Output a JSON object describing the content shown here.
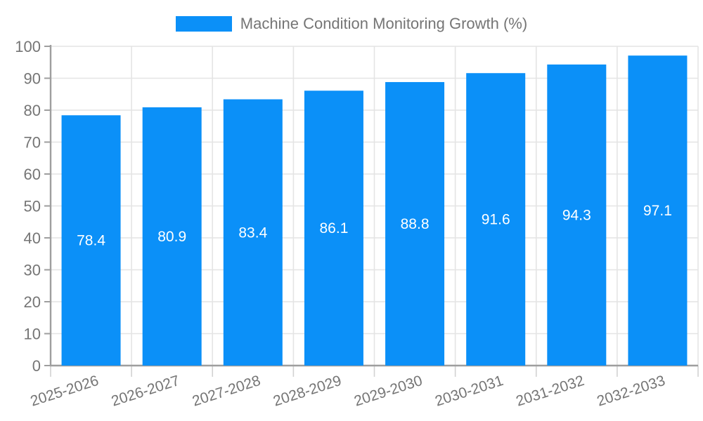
{
  "chart_data": {
    "type": "bar",
    "title": "Machine Condition Monitoring Growth (%)",
    "categories": [
      "2025-2026",
      "2026-2027",
      "2027-2028",
      "2028-2029",
      "2029-2030",
      "2030-2031",
      "2031-2032",
      "2032-2033"
    ],
    "series": [
      {
        "name": "Machine Condition Monitoring Growth (%)",
        "values": [
          78.4,
          80.9,
          83.4,
          86.1,
          88.8,
          91.6,
          94.3,
          97.1
        ]
      }
    ],
    "xlabel": "",
    "ylabel": "",
    "ylim": [
      0,
      100
    ],
    "yticks": [
      0,
      10,
      20,
      30,
      40,
      50,
      60,
      70,
      80,
      90,
      100
    ],
    "grid": true,
    "legend_position": "top-center",
    "value_labels": "inside-center",
    "colors": {
      "bar": "#0b90f8",
      "value_label": "#ffffff",
      "tick_label": "#757575",
      "axis": "#9e9e9e",
      "grid": "#e4e4e4",
      "x_tick_mark": "#d2d2d2",
      "background": "#ffffff"
    }
  }
}
